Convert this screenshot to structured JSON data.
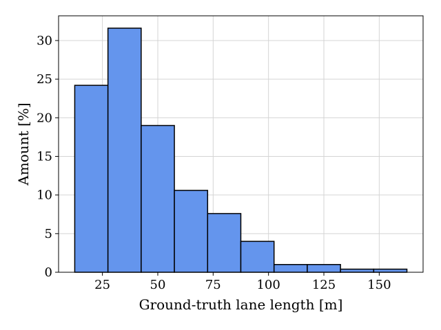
{
  "chart_data": {
    "type": "bar",
    "title": "",
    "xlabel": "Ground-truth lane length [m]",
    "ylabel": "Amount [%]",
    "bins": [
      {
        "start": 12.5,
        "end": 27.5,
        "value": 24.2
      },
      {
        "start": 27.5,
        "end": 42.5,
        "value": 31.6
      },
      {
        "start": 42.5,
        "end": 57.5,
        "value": 19.0
      },
      {
        "start": 57.5,
        "end": 72.5,
        "value": 10.6
      },
      {
        "start": 72.5,
        "end": 87.5,
        "value": 7.6
      },
      {
        "start": 87.5,
        "end": 102.5,
        "value": 4.0
      },
      {
        "start": 102.5,
        "end": 117.5,
        "value": 1.0
      },
      {
        "start": 117.5,
        "end": 132.5,
        "value": 1.0
      },
      {
        "start": 132.5,
        "end": 147.5,
        "value": 0.4
      },
      {
        "start": 147.5,
        "end": 162.5,
        "value": 0.4
      }
    ],
    "xlim": [
      5.2,
      169.8
    ],
    "ylim": [
      0,
      33.2
    ],
    "xticks": [
      25,
      50,
      75,
      100,
      125,
      150
    ],
    "xtick_labels": [
      "25",
      "50",
      "75",
      "100",
      "125",
      "150"
    ],
    "yticks": [
      0,
      5,
      10,
      15,
      20,
      25,
      30
    ],
    "ytick_labels": [
      "0",
      "5",
      "10",
      "15",
      "20",
      "25",
      "30"
    ],
    "grid": true,
    "bar_color": "#6495ED",
    "edge_color": "#000000"
  }
}
